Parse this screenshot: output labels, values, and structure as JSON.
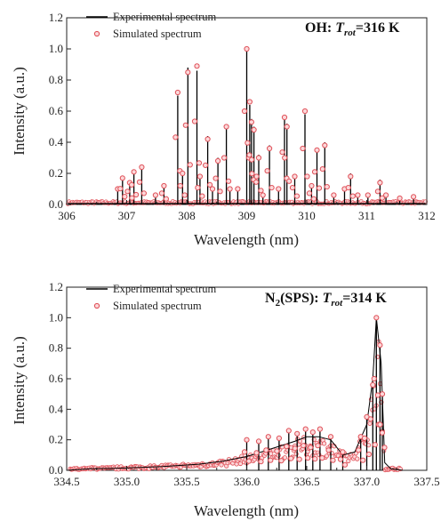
{
  "chart_data": [
    {
      "type": "line",
      "title_parts": {
        "prefix": "OH: ",
        "var": "T",
        "sub": "rot",
        "suffix": "=316 K"
      },
      "xlabel": "Wavelength (nm)",
      "ylabel": "Intensity (a.u.)",
      "xlim": [
        306,
        312
      ],
      "ylim": [
        0,
        1.2
      ],
      "xticks": [
        "306",
        "307",
        "308",
        "309",
        "310",
        "311",
        "312"
      ],
      "xtick_values": [
        306,
        307,
        308,
        309,
        310,
        311,
        312
      ],
      "yticks": [
        "0.0",
        "0.2",
        "0.4",
        "0.6",
        "0.8",
        "1.0",
        "1.2"
      ],
      "ytick_values": [
        0,
        0.2,
        0.4,
        0.6,
        0.8,
        1.0,
        1.2
      ],
      "legend_position": "top-left",
      "series": [
        {
          "name": "Experimental spectrum",
          "style": "line",
          "color": "#000000",
          "peaks": [
            [
              306.85,
              0.1
            ],
            [
              306.93,
              0.17
            ],
            [
              307.05,
              0.14
            ],
            [
              307.12,
              0.21
            ],
            [
              307.25,
              0.24
            ],
            [
              307.48,
              0.06
            ],
            [
              307.62,
              0.12
            ],
            [
              307.85,
              0.7
            ],
            [
              307.93,
              0.2
            ],
            [
              308.02,
              0.88
            ],
            [
              308.17,
              0.86
            ],
            [
              308.22,
              0.18
            ],
            [
              308.35,
              0.44
            ],
            [
              308.43,
              0.1
            ],
            [
              308.52,
              0.3
            ],
            [
              308.66,
              0.51
            ],
            [
              308.72,
              0.1
            ],
            [
              308.85,
              0.1
            ],
            [
              309.0,
              1.0
            ],
            [
              309.05,
              0.64
            ],
            [
              309.08,
              0.55
            ],
            [
              309.12,
              0.5
            ],
            [
              309.2,
              0.32
            ],
            [
              309.27,
              0.06
            ],
            [
              309.38,
              0.38
            ],
            [
              309.53,
              0.1
            ],
            [
              309.63,
              0.55
            ],
            [
              309.67,
              0.52
            ],
            [
              309.8,
              0.18
            ],
            [
              309.97,
              0.58
            ],
            [
              310.08,
              0.12
            ],
            [
              310.17,
              0.36
            ],
            [
              310.3,
              0.4
            ],
            [
              310.45,
              0.06
            ],
            [
              310.63,
              0.1
            ],
            [
              310.73,
              0.2
            ],
            [
              310.85,
              0.06
            ],
            [
              311.02,
              0.06
            ],
            [
              311.22,
              0.16
            ],
            [
              311.32,
              0.06
            ],
            [
              311.55,
              0.04
            ],
            [
              311.78,
              0.05
            ]
          ]
        },
        {
          "name": "Simulated spectrum",
          "style": "markers",
          "color": "#e0525a",
          "peaks": [
            [
              306.85,
              0.1
            ],
            [
              306.93,
              0.17
            ],
            [
              307.05,
              0.14
            ],
            [
              307.12,
              0.21
            ],
            [
              307.25,
              0.24
            ],
            [
              307.48,
              0.06
            ],
            [
              307.62,
              0.12
            ],
            [
              307.85,
              0.72
            ],
            [
              307.93,
              0.2
            ],
            [
              308.02,
              0.85
            ],
            [
              308.17,
              0.89
            ],
            [
              308.22,
              0.18
            ],
            [
              308.35,
              0.42
            ],
            [
              308.43,
              0.1
            ],
            [
              308.52,
              0.28
            ],
            [
              308.66,
              0.5
            ],
            [
              308.72,
              0.1
            ],
            [
              308.85,
              0.1
            ],
            [
              309.0,
              1.0
            ],
            [
              309.05,
              0.66
            ],
            [
              309.08,
              0.53
            ],
            [
              309.12,
              0.48
            ],
            [
              309.2,
              0.3
            ],
            [
              309.27,
              0.06
            ],
            [
              309.38,
              0.36
            ],
            [
              309.53,
              0.1
            ],
            [
              309.63,
              0.56
            ],
            [
              309.67,
              0.5
            ],
            [
              309.8,
              0.18
            ],
            [
              309.97,
              0.6
            ],
            [
              310.08,
              0.12
            ],
            [
              310.17,
              0.35
            ],
            [
              310.3,
              0.38
            ],
            [
              310.45,
              0.06
            ],
            [
              310.63,
              0.1
            ],
            [
              310.73,
              0.18
            ],
            [
              310.85,
              0.06
            ],
            [
              311.02,
              0.06
            ],
            [
              311.22,
              0.14
            ],
            [
              311.32,
              0.06
            ],
            [
              311.55,
              0.04
            ],
            [
              311.78,
              0.05
            ]
          ]
        }
      ]
    },
    {
      "type": "line",
      "title_parts": {
        "prefix": "N",
        "prefix_sub": "2",
        "prefix_rest": "(SPS): ",
        "var": "T",
        "sub": "rot",
        "suffix": "=314 K"
      },
      "xlabel": "Wavelength (nm)",
      "ylabel": "Intensity (a.u.)",
      "xlim": [
        334.5,
        337.5
      ],
      "ylim": [
        0,
        1.2
      ],
      "xticks": [
        "334.5",
        "335.0",
        "335.5",
        "336.0",
        "336.5",
        "337.0",
        "337.5"
      ],
      "xtick_values": [
        334.5,
        335.0,
        335.5,
        336.0,
        336.5,
        337.0,
        337.5
      ],
      "yticks": [
        "0.0",
        "0.2",
        "0.4",
        "0.6",
        "0.8",
        "1.0",
        "1.2"
      ],
      "ytick_values": [
        0,
        0.2,
        0.4,
        0.6,
        0.8,
        1.0,
        1.2
      ],
      "legend_position": "top-left",
      "series": [
        {
          "name": "Experimental spectrum",
          "style": "line",
          "color": "#000000",
          "envelope": [
            [
              334.5,
              0.0
            ],
            [
              334.7,
              0.01
            ],
            [
              335.0,
              0.015
            ],
            [
              335.3,
              0.025
            ],
            [
              335.6,
              0.04
            ],
            [
              335.8,
              0.06
            ],
            [
              336.0,
              0.09
            ],
            [
              336.2,
              0.14
            ],
            [
              336.4,
              0.19
            ],
            [
              336.5,
              0.22
            ],
            [
              336.6,
              0.22
            ],
            [
              336.7,
              0.2
            ],
            [
              336.8,
              0.1
            ],
            [
              336.9,
              0.12
            ],
            [
              337.0,
              0.3
            ],
            [
              337.05,
              0.6
            ],
            [
              337.08,
              1.0
            ],
            [
              337.12,
              0.7
            ],
            [
              337.15,
              0.05
            ],
            [
              337.2,
              0.01
            ],
            [
              337.3,
              0.0
            ]
          ],
          "peaks": [
            [
              336.0,
              0.2
            ],
            [
              336.1,
              0.19
            ],
            [
              336.18,
              0.22
            ],
            [
              336.27,
              0.21
            ],
            [
              336.35,
              0.26
            ],
            [
              336.42,
              0.24
            ],
            [
              336.49,
              0.27
            ],
            [
              336.55,
              0.25
            ],
            [
              336.61,
              0.27
            ],
            [
              336.7,
              0.22
            ],
            [
              336.8,
              0.12
            ],
            [
              336.95,
              0.22
            ],
            [
              337.0,
              0.35
            ],
            [
              337.05,
              0.58
            ],
            [
              337.08,
              1.0
            ],
            [
              337.11,
              0.82
            ],
            [
              337.13,
              0.5
            ]
          ]
        },
        {
          "name": "Simulated spectrum",
          "style": "markers",
          "color": "#e0525a",
          "peaks": [
            [
              336.0,
              0.2
            ],
            [
              336.1,
              0.19
            ],
            [
              336.18,
              0.22
            ],
            [
              336.27,
              0.21
            ],
            [
              336.35,
              0.26
            ],
            [
              336.42,
              0.24
            ],
            [
              336.49,
              0.27
            ],
            [
              336.55,
              0.25
            ],
            [
              336.61,
              0.27
            ],
            [
              336.7,
              0.22
            ],
            [
              336.8,
              0.12
            ],
            [
              336.95,
              0.22
            ],
            [
              337.0,
              0.35
            ],
            [
              337.05,
              0.56
            ],
            [
              337.08,
              1.0
            ],
            [
              337.11,
              0.82
            ],
            [
              337.13,
              0.5
            ]
          ]
        }
      ]
    }
  ]
}
